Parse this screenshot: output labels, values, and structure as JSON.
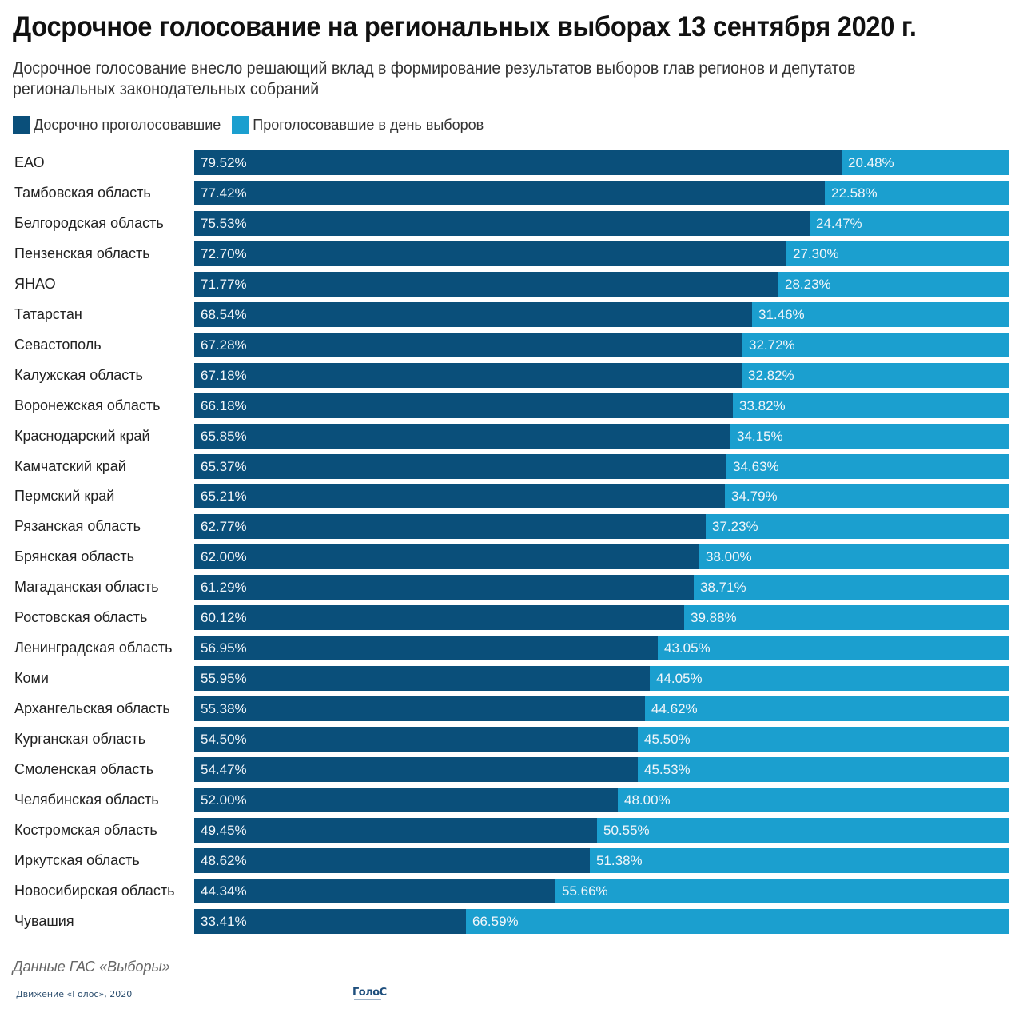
{
  "header": {
    "title": "Досрочное голосование на региональных выборах 13 сентября 2020 г.",
    "subtitle": "Досрочное голосование внесло решающий вклад в формирование результатов выборов глав регионов и депутатов региональных законодательных собраний"
  },
  "legend": [
    {
      "label": "Досрочно проголосовавшие",
      "color": "#0a4f7a"
    },
    {
      "label": "Проголосовавшие в день выборов",
      "color": "#1b9fcf"
    }
  ],
  "chart_data": {
    "type": "bar",
    "orientation": "horizontal",
    "stacked": true,
    "normalized": true,
    "title": "Досрочное голосование на региональных выборах 13 сентября 2020 г.",
    "xlabel": "",
    "ylabel": "",
    "xlim": [
      0,
      100
    ],
    "grid": false,
    "legend_position": "top-left",
    "categories": [
      "ЕАО",
      "Тамбовская область",
      "Белгородская область",
      "Пензенская область",
      "ЯНАО",
      "Татарстан",
      "Севастополь",
      "Калужская область",
      "Воронежская область",
      "Краснодарский край",
      "Камчатский край",
      "Пермский край",
      "Рязанская область",
      "Брянская область",
      "Магаданская область",
      "Ростовская область",
      "Ленинградская область",
      "Коми",
      "Архангельская область",
      "Курганская область",
      "Смоленская область",
      "Челябинская область",
      "Костромская область",
      "Иркутская область",
      "Новосибирская область",
      "Чувашия"
    ],
    "series": [
      {
        "name": "Досрочно проголосовавшие",
        "color": "#0a4f7a",
        "values": [
          79.52,
          77.42,
          75.53,
          72.7,
          71.77,
          68.54,
          67.28,
          67.18,
          66.18,
          65.85,
          65.37,
          65.21,
          62.77,
          62.0,
          61.29,
          60.12,
          56.95,
          55.95,
          55.38,
          54.5,
          54.47,
          52.0,
          49.45,
          48.62,
          44.34,
          33.41
        ],
        "labels": [
          "79.52%",
          "77.42%",
          "75.53%",
          "72.70%",
          "71.77%",
          "68.54%",
          "67.28%",
          "67.18%",
          "66.18%",
          "65.85%",
          "65.37%",
          "65.21%",
          "62.77%",
          "62.00%",
          "61.29%",
          "60.12%",
          "56.95%",
          "55.95%",
          "55.38%",
          "54.50%",
          "54.47%",
          "52.00%",
          "49.45%",
          "48.62%",
          "44.34%",
          "33.41%"
        ]
      },
      {
        "name": "Проголосовавшие в день выборов",
        "color": "#1b9fcf",
        "values": [
          20.48,
          22.58,
          24.47,
          27.3,
          28.23,
          31.46,
          32.72,
          32.82,
          33.82,
          34.15,
          34.63,
          34.79,
          37.23,
          38.0,
          38.71,
          39.88,
          43.05,
          44.05,
          44.62,
          45.5,
          45.53,
          48.0,
          50.55,
          51.38,
          55.66,
          66.59
        ],
        "labels": [
          "20.48%",
          "22.58%",
          "24.47%",
          "27.30%",
          "28.23%",
          "31.46%",
          "32.72%",
          "32.82%",
          "33.82%",
          "34.15%",
          "34.63%",
          "34.79%",
          "37.23%",
          "38.00%",
          "38.71%",
          "39.88%",
          "43.05%",
          "44.05%",
          "44.62%",
          "45.50%",
          "45.53%",
          "48.00%",
          "50.55%",
          "51.38%",
          "55.66%",
          "66.59%"
        ]
      }
    ]
  },
  "footer": {
    "source": "Данные ГАС «Выборы»",
    "credit": "Движение «Голос», 2020",
    "logo": "ГолоС"
  }
}
